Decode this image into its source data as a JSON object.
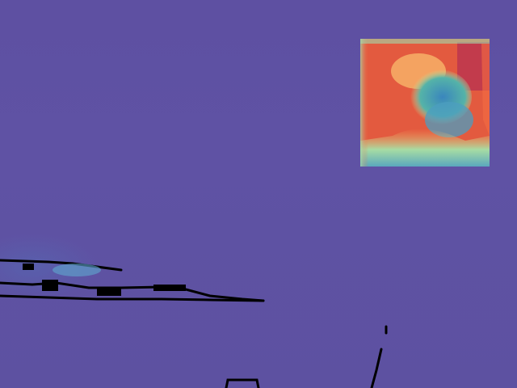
{
  "scene": {
    "kind": "false-color depth / saliency map",
    "palette": [
      "#5e4fa2",
      "#3288bd",
      "#66c2a5",
      "#abdda4",
      "#e6f598",
      "#fee08b",
      "#fdae61",
      "#f46d43",
      "#d53e4f",
      "#9e0142"
    ],
    "background_color": "#5f52a3"
  },
  "heatmap": {
    "hot_color": "#e0533c",
    "warm_color": "#f98e52",
    "cool_color": "#3e8fc0",
    "edge_color": "#7fd0a8"
  }
}
